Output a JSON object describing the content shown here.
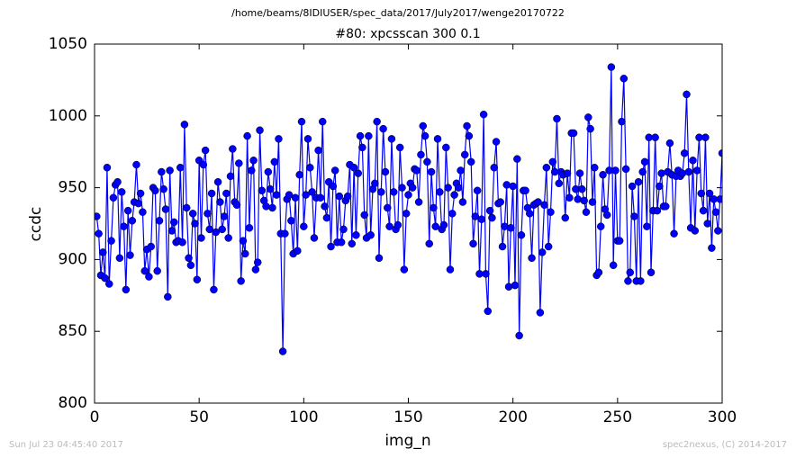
{
  "chart_data": {
    "type": "line",
    "suptitle": "/home/beams/8IDIUSER/spec_data/2017/July2017/wenge20170722",
    "title": "#80: xpcsscan 300 0.1",
    "xlabel": "img_n",
    "ylabel": "ccdc",
    "footer_left": "Sun Jul 23 04:45:40 2017",
    "footer_right": "spec2nexus, (C) 2014-2017",
    "xlim": [
      0,
      300
    ],
    "xticks": [
      0,
      50,
      100,
      150,
      200,
      250,
      300
    ],
    "ylim": [
      800,
      1050
    ],
    "yticks": [
      800,
      850,
      900,
      950,
      1000,
      1050
    ],
    "x": [
      1,
      2,
      3,
      4,
      5,
      6,
      7,
      8,
      9,
      10,
      11,
      12,
      13,
      14,
      15,
      16,
      17,
      18,
      19,
      20,
      21,
      22,
      23,
      24,
      25,
      26,
      27,
      28,
      29,
      30,
      31,
      32,
      33,
      34,
      35,
      36,
      37,
      38,
      39,
      40,
      41,
      42,
      43,
      44,
      45,
      46,
      47,
      48,
      49,
      50,
      51,
      52,
      53,
      54,
      55,
      56,
      57,
      58,
      59,
      60,
      61,
      62,
      63,
      64,
      65,
      66,
      67,
      68,
      69,
      70,
      71,
      72,
      73,
      74,
      75,
      76,
      77,
      78,
      79,
      80,
      81,
      82,
      83,
      84,
      85,
      86,
      87,
      88,
      89,
      90,
      91,
      92,
      93,
      94,
      95,
      96,
      97,
      98,
      99,
      100,
      101,
      102,
      103,
      104,
      105,
      106,
      107,
      108,
      109,
      110,
      111,
      112,
      113,
      114,
      115,
      116,
      117,
      118,
      119,
      120,
      121,
      122,
      123,
      124,
      125,
      126,
      127,
      128,
      129,
      130,
      131,
      132,
      133,
      134,
      135,
      136,
      137,
      138,
      139,
      140,
      141,
      142,
      143,
      144,
      145,
      146,
      147,
      148,
      149,
      150,
      151,
      152,
      153,
      154,
      155,
      156,
      157,
      158,
      159,
      160,
      161,
      162,
      163,
      164,
      165,
      166,
      167,
      168,
      169,
      170,
      171,
      172,
      173,
      174,
      175,
      176,
      177,
      178,
      179,
      180,
      181,
      182,
      183,
      184,
      185,
      186,
      187,
      188,
      189,
      190,
      191,
      192,
      193,
      194,
      195,
      196,
      197,
      198,
      199,
      200,
      201,
      202,
      203,
      204,
      205,
      206,
      207,
      208,
      209,
      210,
      211,
      212,
      213,
      214,
      215,
      216,
      217,
      218,
      219,
      220,
      221,
      222,
      223,
      224,
      225,
      226,
      227,
      228,
      229,
      230,
      231,
      232,
      233,
      234,
      235,
      236,
      237,
      238,
      239,
      240,
      241,
      242,
      243,
      244,
      245,
      246,
      247,
      248,
      249,
      250,
      251,
      252,
      253,
      254,
      255,
      256,
      257,
      258,
      259,
      260,
      261,
      262,
      263,
      264,
      265,
      266,
      267,
      268,
      269,
      270,
      271,
      272,
      273,
      274,
      275,
      276,
      277,
      278,
      279,
      280,
      281,
      282,
      283,
      284,
      285,
      286,
      287,
      288,
      289,
      290,
      291,
      292,
      293,
      294,
      295,
      296,
      297,
      298,
      299,
      300
    ],
    "series": [
      {
        "color": "#0000ff",
        "values": [
          930,
          918,
          889,
          905,
          887,
          964,
          883,
          913,
          943,
          952,
          954,
          901,
          947,
          923,
          879,
          934,
          903,
          927,
          940,
          966,
          939,
          946,
          933,
          892,
          907,
          888,
          909,
          950,
          948,
          892,
          927,
          961,
          949,
          935,
          874,
          962,
          920,
          926,
          912,
          913,
          964,
          912,
          994,
          936,
          901,
          896,
          932,
          925,
          886,
          969,
          915,
          966,
          976,
          932,
          921,
          946,
          879,
          919,
          954,
          940,
          921,
          930,
          946,
          915,
          958,
          977,
          940,
          938,
          967,
          885,
          913,
          904,
          986,
          922,
          962,
          969,
          893,
          898,
          990,
          948,
          941,
          937,
          961,
          949,
          936,
          968,
          945,
          984,
          918,
          836,
          918,
          942,
          945,
          927,
          904,
          943,
          906,
          959,
          996,
          923,
          945,
          984,
          964,
          947,
          915,
          943,
          976,
          943,
          996,
          937,
          929,
          954,
          909,
          951,
          962,
          912,
          944,
          912,
          921,
          941,
          944,
          966,
          911,
          964,
          917,
          960,
          986,
          978,
          931,
          915,
          986,
          917,
          949,
          953,
          996,
          901,
          947,
          991,
          961,
          936,
          923,
          984,
          947,
          921,
          924,
          978,
          950,
          893,
          932,
          945,
          953,
          950,
          963,
          962,
          940,
          973,
          993,
          986,
          968,
          911,
          961,
          936,
          923,
          984,
          947,
          921,
          924,
          978,
          950,
          893,
          932,
          945,
          953,
          950,
          962,
          940,
          973,
          993,
          986,
          968,
          911,
          930,
          948,
          890,
          928,
          1001,
          890,
          864,
          934,
          929,
          964,
          982,
          939,
          940,
          909,
          923,
          952,
          881,
          922,
          951,
          882,
          970,
          847,
          917,
          948,
          948,
          936,
          932,
          901,
          938,
          939,
          940,
          863,
          905,
          938,
          964,
          909,
          933,
          968,
          961,
          998,
          953,
          961,
          959,
          929,
          960,
          943,
          988,
          988,
          949,
          942,
          960,
          949,
          941,
          933,
          999,
          991,
          940,
          964,
          889,
          891,
          923,
          959,
          935,
          931,
          962,
          1034,
          896,
          962,
          913,
          913,
          996,
          1026,
          963,
          885,
          891,
          951,
          930,
          885,
          954,
          885,
          961,
          968,
          923,
          985,
          891,
          934,
          985,
          934,
          951,
          960,
          937,
          937,
          961,
          981,
          959,
          918,
          958,
          962,
          958,
          960,
          974,
          1015,
          961,
          922,
          969,
          920,
          962,
          985,
          946,
          934,
          985,
          925,
          946,
          908,
          942,
          933,
          920,
          942,
          974
        ]
      }
    ]
  }
}
